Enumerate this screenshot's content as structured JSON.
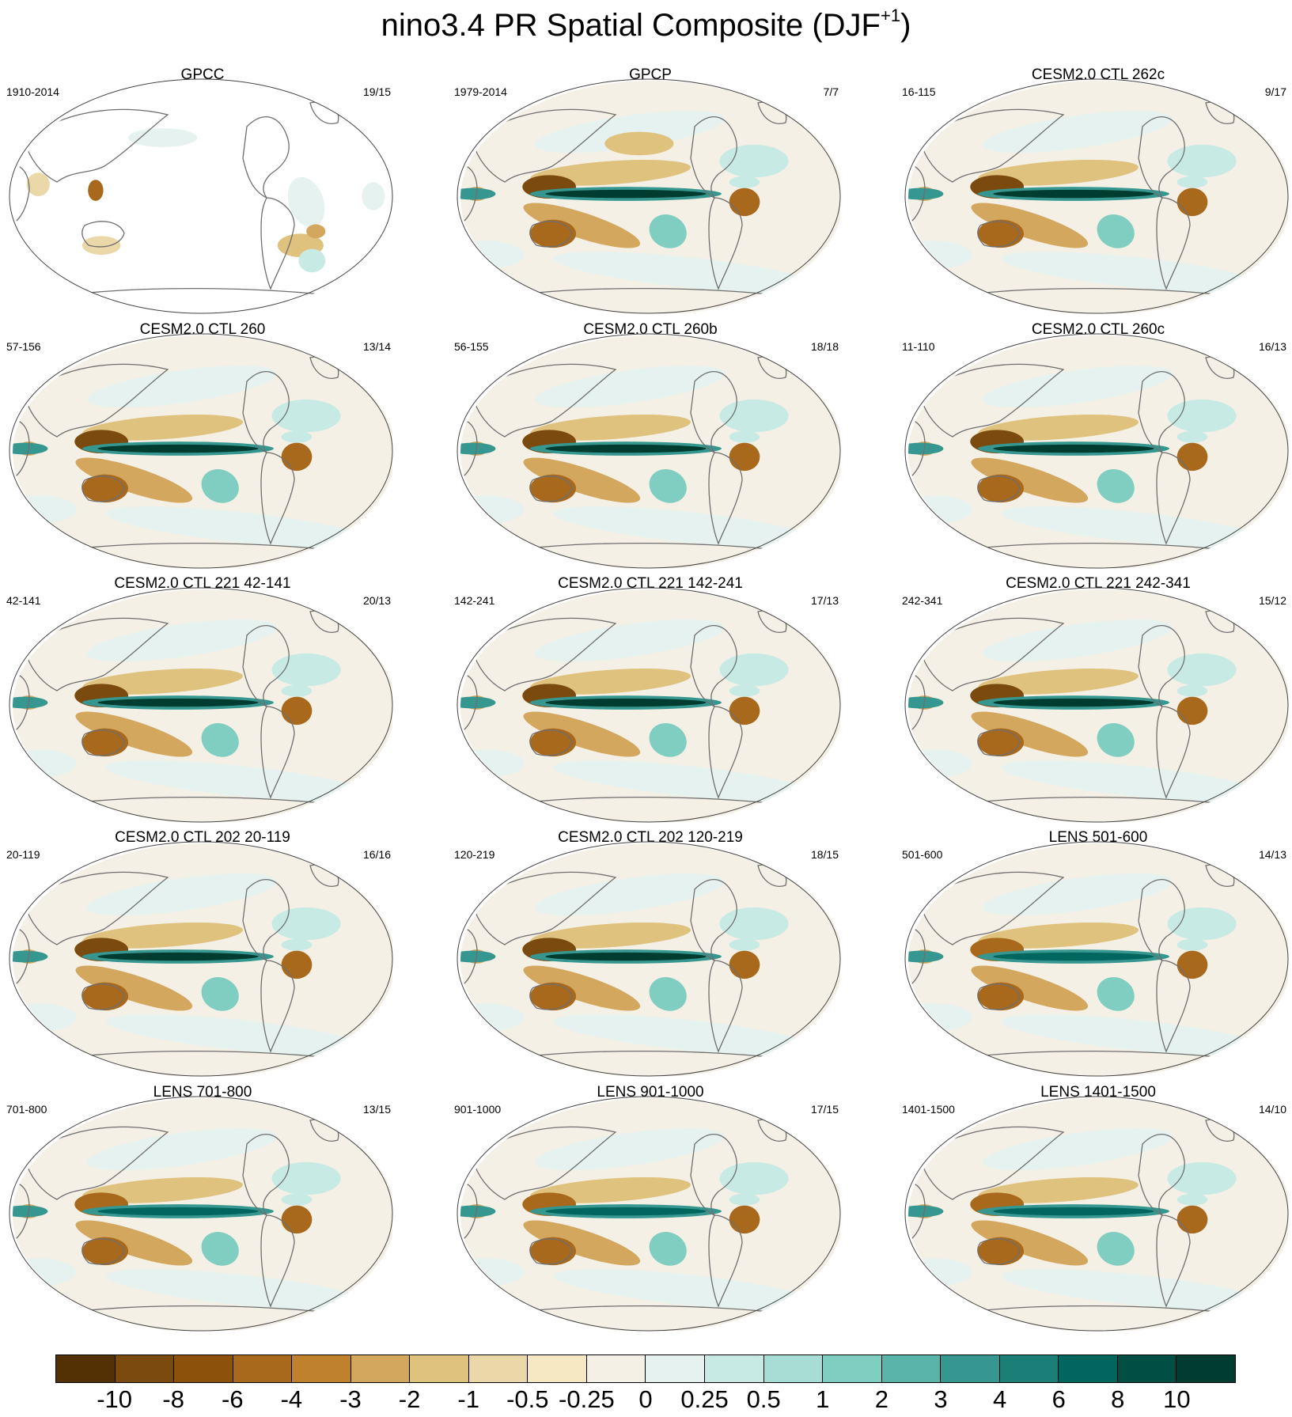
{
  "title": {
    "main": "nino3.4 PR Spatial Composite (DJF",
    "superscript": "+1",
    "close": ")"
  },
  "panels": [
    {
      "title": "GPCC",
      "period": "1910-2014",
      "count": "19/15",
      "pattern": "obs_land"
    },
    {
      "title": "GPCP",
      "period": "1979-2014",
      "count": "7/7",
      "pattern": "obs_full"
    },
    {
      "title": "CESM2.0 CTL 262c",
      "period": "16-115",
      "count": "9/17",
      "pattern": "model"
    },
    {
      "title": "CESM2.0 CTL 260",
      "period": "57-156",
      "count": "13/14",
      "pattern": "model"
    },
    {
      "title": "CESM2.0 CTL 260b",
      "period": "56-155",
      "count": "18/18",
      "pattern": "model"
    },
    {
      "title": "CESM2.0 CTL 260c",
      "period": "11-110",
      "count": "16/13",
      "pattern": "model"
    },
    {
      "title": "CESM2.0 CTL 221 42-141",
      "period": "42-141",
      "count": "20/13",
      "pattern": "model"
    },
    {
      "title": "CESM2.0 CTL 221 142-241",
      "period": "142-241",
      "count": "17/13",
      "pattern": "model"
    },
    {
      "title": "CESM2.0 CTL 221 242-341",
      "period": "242-341",
      "count": "15/12",
      "pattern": "model"
    },
    {
      "title": "CESM2.0 CTL 202 20-119",
      "period": "20-119",
      "count": "16/16",
      "pattern": "model"
    },
    {
      "title": "CESM2.0 CTL 202 120-219",
      "period": "120-219",
      "count": "18/15",
      "pattern": "model"
    },
    {
      "title": "LENS 501-600",
      "period": "501-600",
      "count": "14/13",
      "pattern": "lens"
    },
    {
      "title": "LENS 701-800",
      "period": "701-800",
      "count": "13/15",
      "pattern": "lens"
    },
    {
      "title": "LENS 901-1000",
      "period": "901-1000",
      "count": "17/15",
      "pattern": "lens"
    },
    {
      "title": "LENS 1401-1500",
      "period": "1401-1500",
      "count": "14/10",
      "pattern": "lens"
    }
  ],
  "colorbar": {
    "colors": [
      "#543005",
      "#7b4a0f",
      "#8c510a",
      "#a8691c",
      "#bf812d",
      "#d4a75e",
      "#dfc27d",
      "#ebd8a8",
      "#f6e8c3",
      "#f5f0e6",
      "#e6f2ef",
      "#c7eae5",
      "#a7ddd5",
      "#80cdc1",
      "#5ab4a9",
      "#35978f",
      "#1c7f77",
      "#01665e",
      "#014e45",
      "#003c30"
    ],
    "labels": [
      "-10",
      "-8",
      "-6",
      "-4",
      "-3",
      "-2",
      "-1",
      "-0.5",
      "-0.25",
      "0",
      "0.25",
      "0.5",
      "1",
      "2",
      "3",
      "4",
      "6",
      "8",
      "10"
    ]
  }
}
